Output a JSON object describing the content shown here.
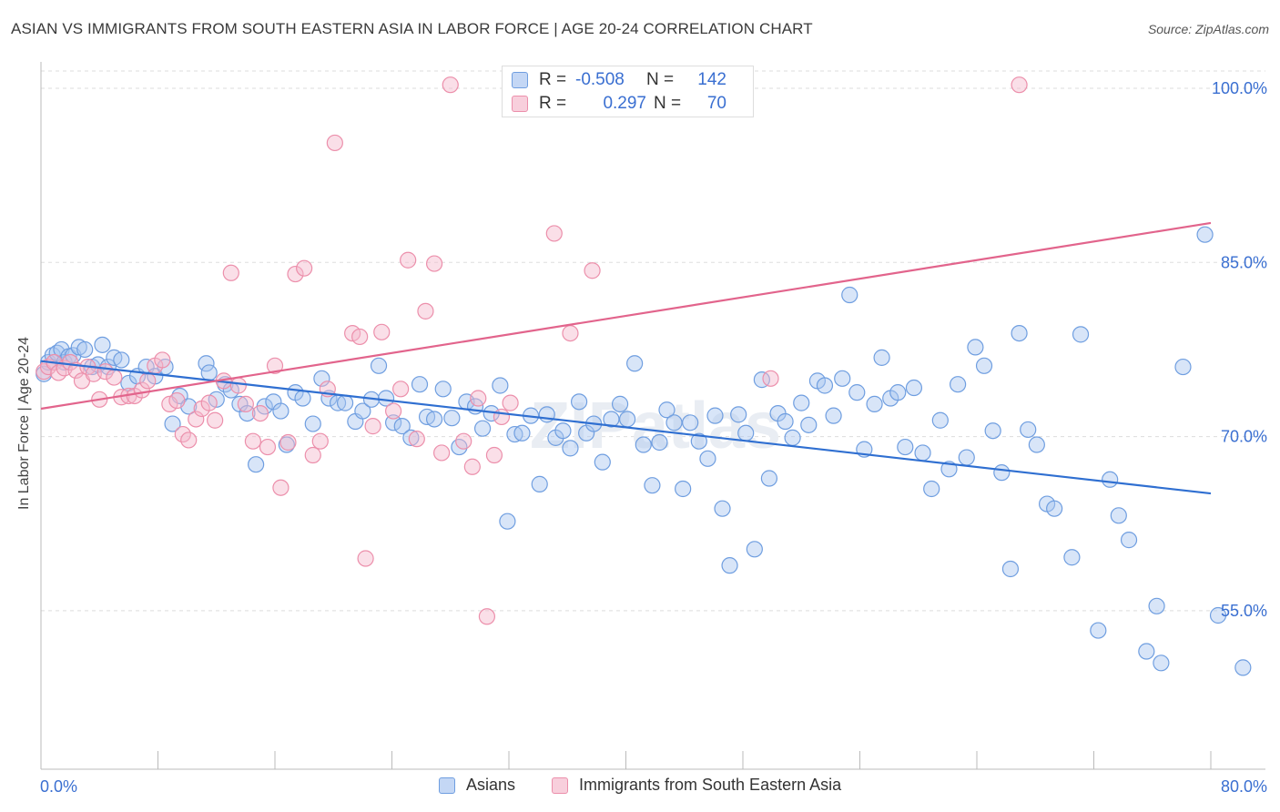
{
  "title": "ASIAN VS IMMIGRANTS FROM SOUTH EASTERN ASIA IN LABOR FORCE | AGE 20-24 CORRELATION CHART",
  "source": "Source: ZipAtlas.com",
  "colors": {
    "asians_fill": "#a9c6f0",
    "asians_stroke": "#6f9ee0",
    "asians_line": "#2f6fd1",
    "immigrants_fill": "#f5b8cb",
    "immigrants_stroke": "#ec8fab",
    "immigrants_line": "#e2648c",
    "axis_value": "#3a6fd1",
    "grid": "#dddddd"
  },
  "legend_top": {
    "rows": [
      {
        "r_label": "R =",
        "r_value": "-0.508",
        "n_label": "N =",
        "n_value": "142"
      },
      {
        "r_label": "R =",
        "r_value": "0.297",
        "n_label": "N =",
        "n_value": "70"
      }
    ]
  },
  "legend_bottom": {
    "items": [
      {
        "label": "Asians"
      },
      {
        "label": "Immigrants from South Eastern Asia"
      }
    ]
  },
  "watermark": "ZIPatlas",
  "chart_data": {
    "type": "scatter",
    "title": "ASIAN VS IMMIGRANTS FROM SOUTH EASTERN ASIA IN LABOR FORCE | AGE 20-24 CORRELATION CHART",
    "xlabel": "",
    "ylabel": "In Labor Force | Age 20-24",
    "xlim": [
      0,
      80
    ],
    "ylim": [
      40,
      102
    ],
    "x_tick_labels": [
      "0.0%",
      "80.0%"
    ],
    "y_ticks": [
      55,
      70,
      85,
      100
    ],
    "y_tick_labels": [
      "55.0%",
      "70.0%",
      "85.0%",
      "100.0%"
    ],
    "grid": true,
    "legend_position": "top-center",
    "series": [
      {
        "name": "Asians",
        "r": -0.508,
        "n": 142,
        "trend": {
          "x": [
            0,
            80
          ],
          "y": [
            76.5,
            65.1
          ]
        },
        "points": [
          [
            0.2,
            75.4
          ],
          [
            0.5,
            76.4
          ],
          [
            0.8,
            77.0
          ],
          [
            1.1,
            77.2
          ],
          [
            1.4,
            77.5
          ],
          [
            1.6,
            76.4
          ],
          [
            1.9,
            76.9
          ],
          [
            2.2,
            77.0
          ],
          [
            2.6,
            77.7
          ],
          [
            3.0,
            77.5
          ],
          [
            3.5,
            76.0
          ],
          [
            3.9,
            76.2
          ],
          [
            4.2,
            77.9
          ],
          [
            4.6,
            76.0
          ],
          [
            5.0,
            76.8
          ],
          [
            5.5,
            76.6
          ],
          [
            6.0,
            74.6
          ],
          [
            6.6,
            75.2
          ],
          [
            7.2,
            76.0
          ],
          [
            7.8,
            75.2
          ],
          [
            8.5,
            76.0
          ],
          [
            9.0,
            71.1
          ],
          [
            9.5,
            73.5
          ],
          [
            10.1,
            72.6
          ],
          [
            11.3,
            76.3
          ],
          [
            11.5,
            75.5
          ],
          [
            12.0,
            73.2
          ],
          [
            12.6,
            74.5
          ],
          [
            13.0,
            74.0
          ],
          [
            13.6,
            72.8
          ],
          [
            14.1,
            72.0
          ],
          [
            14.7,
            67.6
          ],
          [
            15.3,
            72.6
          ],
          [
            15.9,
            73.0
          ],
          [
            16.4,
            72.2
          ],
          [
            16.8,
            69.3
          ],
          [
            17.4,
            73.8
          ],
          [
            17.9,
            73.3
          ],
          [
            18.6,
            71.1
          ],
          [
            19.2,
            75.0
          ],
          [
            19.7,
            73.3
          ],
          [
            20.3,
            72.9
          ],
          [
            20.8,
            72.9
          ],
          [
            21.5,
            71.3
          ],
          [
            22.0,
            72.2
          ],
          [
            22.6,
            73.2
          ],
          [
            23.1,
            76.1
          ],
          [
            23.6,
            73.3
          ],
          [
            24.1,
            71.2
          ],
          [
            24.7,
            70.9
          ],
          [
            25.3,
            69.9
          ],
          [
            25.9,
            74.5
          ],
          [
            26.4,
            71.7
          ],
          [
            26.9,
            71.5
          ],
          [
            27.5,
            74.1
          ],
          [
            28.1,
            71.6
          ],
          [
            28.6,
            69.1
          ],
          [
            29.1,
            73.0
          ],
          [
            29.7,
            72.6
          ],
          [
            30.2,
            70.7
          ],
          [
            30.8,
            72.0
          ],
          [
            31.4,
            74.4
          ],
          [
            31.9,
            62.7
          ],
          [
            32.4,
            70.2
          ],
          [
            32.9,
            70.3
          ],
          [
            33.5,
            71.8
          ],
          [
            34.1,
            65.9
          ],
          [
            34.6,
            71.9
          ],
          [
            35.2,
            69.9
          ],
          [
            35.7,
            70.5
          ],
          [
            36.2,
            69.0
          ],
          [
            36.8,
            73.0
          ],
          [
            37.3,
            70.3
          ],
          [
            37.8,
            71.1
          ],
          [
            38.4,
            67.8
          ],
          [
            39.0,
            71.5
          ],
          [
            39.6,
            72.8
          ],
          [
            40.1,
            71.5
          ],
          [
            40.6,
            76.3
          ],
          [
            41.2,
            69.3
          ],
          [
            41.8,
            65.8
          ],
          [
            42.3,
            69.5
          ],
          [
            42.8,
            72.3
          ],
          [
            43.3,
            71.2
          ],
          [
            43.9,
            65.5
          ],
          [
            44.4,
            71.2
          ],
          [
            45.0,
            69.6
          ],
          [
            45.6,
            68.1
          ],
          [
            46.1,
            71.8
          ],
          [
            46.6,
            63.8
          ],
          [
            47.1,
            58.9
          ],
          [
            47.7,
            71.9
          ],
          [
            48.2,
            70.3
          ],
          [
            48.8,
            60.3
          ],
          [
            49.3,
            74.9
          ],
          [
            49.8,
            66.4
          ],
          [
            50.4,
            72.0
          ],
          [
            50.9,
            71.3
          ],
          [
            51.4,
            69.9
          ],
          [
            52.0,
            72.9
          ],
          [
            52.5,
            71.0
          ],
          [
            53.1,
            74.8
          ],
          [
            53.6,
            74.4
          ],
          [
            54.2,
            71.8
          ],
          [
            54.8,
            75.0
          ],
          [
            55.3,
            82.2
          ],
          [
            55.8,
            73.8
          ],
          [
            56.3,
            68.9
          ],
          [
            57.0,
            72.8
          ],
          [
            57.5,
            76.8
          ],
          [
            58.1,
            73.3
          ],
          [
            58.6,
            73.8
          ],
          [
            59.1,
            69.1
          ],
          [
            59.7,
            74.2
          ],
          [
            60.3,
            68.6
          ],
          [
            60.9,
            65.5
          ],
          [
            61.5,
            71.4
          ],
          [
            62.1,
            67.2
          ],
          [
            62.7,
            74.5
          ],
          [
            63.3,
            68.2
          ],
          [
            63.9,
            77.7
          ],
          [
            64.5,
            76.1
          ],
          [
            65.1,
            70.5
          ],
          [
            65.7,
            66.9
          ],
          [
            66.3,
            58.6
          ],
          [
            66.9,
            78.9
          ],
          [
            67.5,
            70.6
          ],
          [
            68.1,
            69.3
          ],
          [
            68.8,
            64.2
          ],
          [
            69.3,
            63.8
          ],
          [
            70.5,
            59.6
          ],
          [
            71.1,
            78.8
          ],
          [
            72.3,
            53.3
          ],
          [
            73.1,
            66.3
          ],
          [
            73.7,
            63.2
          ],
          [
            74.4,
            61.1
          ],
          [
            76.3,
            55.4
          ],
          [
            76.6,
            50.5
          ],
          [
            78.1,
            76.0
          ],
          [
            79.6,
            87.4
          ],
          [
            80.5,
            54.6
          ],
          [
            82.2,
            50.1
          ],
          [
            75.6,
            51.5
          ]
        ]
      },
      {
        "name": "Immigrants from South Eastern Asia",
        "r": 0.297,
        "n": 70,
        "trend": {
          "x": [
            0,
            80
          ],
          "y": [
            72.4,
            88.4
          ]
        },
        "points": [
          [
            0.2,
            75.6
          ],
          [
            0.5,
            76.0
          ],
          [
            0.9,
            76.4
          ],
          [
            1.2,
            75.5
          ],
          [
            1.6,
            75.9
          ],
          [
            2.0,
            76.4
          ],
          [
            2.4,
            75.7
          ],
          [
            2.8,
            74.8
          ],
          [
            3.2,
            76.0
          ],
          [
            3.6,
            75.4
          ],
          [
            4.0,
            73.2
          ],
          [
            4.4,
            75.6
          ],
          [
            5.0,
            75.1
          ],
          [
            5.5,
            73.4
          ],
          [
            6.0,
            73.5
          ],
          [
            6.4,
            73.5
          ],
          [
            6.9,
            74.0
          ],
          [
            7.3,
            74.8
          ],
          [
            7.8,
            76.1
          ],
          [
            8.3,
            76.6
          ],
          [
            8.8,
            72.8
          ],
          [
            9.3,
            73.1
          ],
          [
            9.7,
            70.2
          ],
          [
            10.1,
            69.7
          ],
          [
            10.6,
            71.5
          ],
          [
            11.0,
            72.4
          ],
          [
            11.5,
            72.9
          ],
          [
            11.9,
            71.4
          ],
          [
            12.5,
            74.8
          ],
          [
            13.0,
            84.1
          ],
          [
            13.5,
            74.4
          ],
          [
            14.0,
            72.8
          ],
          [
            14.5,
            69.6
          ],
          [
            15.0,
            72.0
          ],
          [
            15.5,
            69.1
          ],
          [
            16.0,
            76.1
          ],
          [
            16.4,
            65.6
          ],
          [
            16.9,
            69.5
          ],
          [
            17.4,
            84.0
          ],
          [
            18.0,
            84.5
          ],
          [
            18.6,
            68.4
          ],
          [
            19.1,
            69.6
          ],
          [
            19.6,
            74.1
          ],
          [
            20.1,
            95.3
          ],
          [
            21.3,
            78.9
          ],
          [
            21.8,
            78.6
          ],
          [
            22.2,
            59.5
          ],
          [
            22.7,
            70.9
          ],
          [
            23.3,
            79.0
          ],
          [
            24.1,
            72.2
          ],
          [
            24.6,
            74.1
          ],
          [
            25.1,
            85.2
          ],
          [
            25.7,
            69.8
          ],
          [
            26.3,
            80.8
          ],
          [
            26.9,
            84.9
          ],
          [
            27.4,
            68.6
          ],
          [
            28.0,
            100.3
          ],
          [
            28.9,
            69.6
          ],
          [
            29.5,
            67.4
          ],
          [
            29.9,
            73.3
          ],
          [
            30.5,
            54.5
          ],
          [
            31.0,
            68.4
          ],
          [
            31.5,
            71.7
          ],
          [
            32.1,
            72.9
          ],
          [
            32.6,
            100.5
          ],
          [
            34.1,
            100.5
          ],
          [
            35.1,
            87.5
          ],
          [
            36.2,
            78.9
          ],
          [
            37.7,
            84.3
          ],
          [
            49.9,
            75.0
          ],
          [
            66.9,
            100.3
          ]
        ]
      }
    ]
  }
}
